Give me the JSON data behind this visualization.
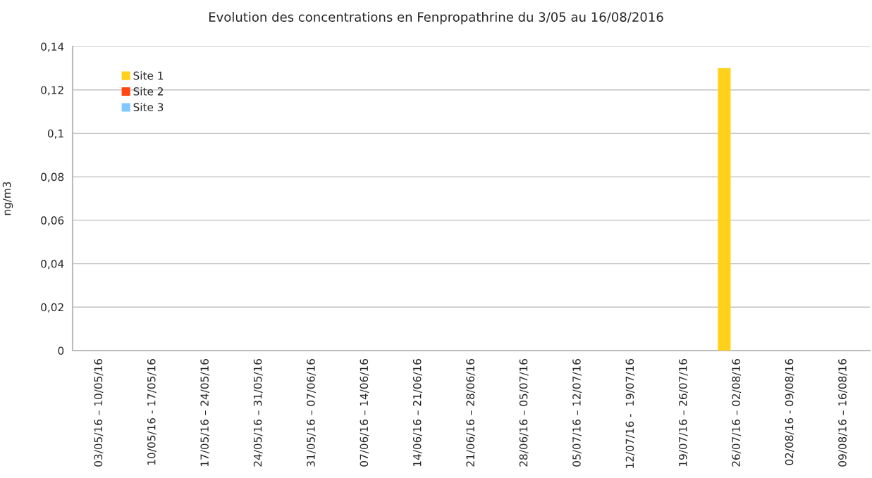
{
  "chart_data": {
    "type": "bar",
    "title": "Evolution des concentrations en Fenpropathrine du 3/05 au 16/08/2016",
    "ylabel": "ng/m3",
    "categories": [
      "03/05/16 – 10/05/16",
      "10/05/16 - 17/05/16",
      "17/05/16 – 24/05/16",
      "24/05/16 – 31/05/16",
      "31/05/16 – 07/06/16",
      "07/06/16 – 14/06/16",
      "14/06/16 – 21/06/16",
      "21/06/16 – 28/06/16",
      "28/06/16 – 05/07/16",
      "05/07/16 – 12/07/16",
      "12/07/16 -  19/07/16",
      "19/07/16 – 26/07/16",
      "26/07/16 – 02/08/16",
      "02/08/16 - 09/08/16",
      "09/08/16 – 16/08/16"
    ],
    "series": [
      {
        "name": "Site 1",
        "color": "#ffd11a",
        "values": [
          0,
          0,
          0,
          0,
          0,
          0,
          0,
          0,
          0,
          0,
          0,
          0,
          0.13,
          0,
          0
        ]
      },
      {
        "name": "Site 2",
        "color": "#ff4713",
        "values": [
          0,
          0,
          0,
          0,
          0,
          0,
          0,
          0,
          0,
          0,
          0,
          0,
          0,
          0,
          0
        ]
      },
      {
        "name": "Site 3",
        "color": "#80c8ff",
        "values": [
          0,
          0,
          0,
          0,
          0,
          0,
          0,
          0,
          0,
          0,
          0,
          0,
          0,
          0,
          0
        ]
      }
    ],
    "ylim": [
      0,
      0.14
    ],
    "yticks": [
      0,
      {
        "value": 0.02,
        "label": "0,02"
      },
      {
        "value": 0.04,
        "label": "0,04"
      },
      {
        "value": 0.06,
        "label": "0,06"
      },
      {
        "value": 0.08,
        "label": "0,08"
      },
      {
        "value": 0.1,
        "label": "0,1"
      },
      {
        "value": 0.12,
        "label": "0,12"
      },
      {
        "value": 0.14,
        "label": "0,14"
      }
    ],
    "grid": "y",
    "legend": "top left"
  }
}
